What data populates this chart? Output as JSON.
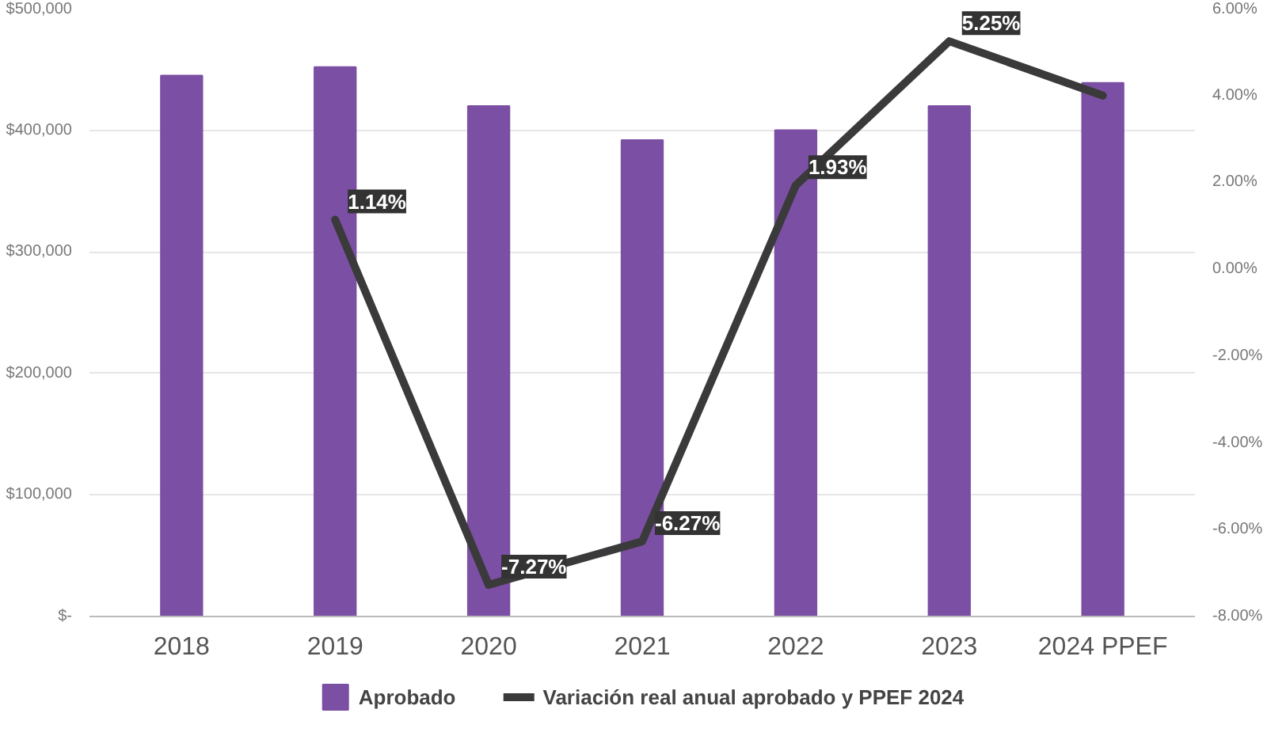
{
  "chart_data": {
    "type": "bar",
    "categories": [
      "2018",
      "2019",
      "2020",
      "2021",
      "2022",
      "2023",
      "2024 PPEF"
    ],
    "series": [
      {
        "name": "Aprobado",
        "color": "#7b4fa3",
        "values": [
          445000,
          452000,
          420000,
          392000,
          400000,
          420000,
          439000
        ]
      },
      {
        "name": "Variación real anual aprobado y PPEF 2024",
        "type": "line",
        "axis": "y2",
        "color": "#3a3a3a",
        "values": [
          null,
          1.14,
          -7.27,
          -6.27,
          1.93,
          5.25,
          4.0
        ],
        "value_labels": [
          null,
          "1.14%",
          "-7.27%",
          "-6.27%",
          "1.93%",
          "5.25%",
          null
        ]
      }
    ],
    "ylim": [
      0,
      500000
    ],
    "yticks": [
      {
        "value": 0,
        "label": "$-"
      },
      {
        "value": 100000,
        "label": "$100,000"
      },
      {
        "value": 200000,
        "label": "$200,000"
      },
      {
        "value": 300000,
        "label": "$300,000"
      },
      {
        "value": 400000,
        "label": "$400,000"
      },
      {
        "value": 500000,
        "label": "$500,000"
      }
    ],
    "y2lim": [
      -8,
      6
    ],
    "y2ticks": [
      {
        "value": -8,
        "label": "-8.00%"
      },
      {
        "value": -6,
        "label": "-6.00%"
      },
      {
        "value": -4,
        "label": "-4.00%"
      },
      {
        "value": -2,
        "label": "-2.00%"
      },
      {
        "value": 0,
        "label": "0.00%"
      },
      {
        "value": 2,
        "label": "2.00%"
      },
      {
        "value": 4,
        "label": "4.00%"
      },
      {
        "value": 6,
        "label": "6.00%"
      }
    ],
    "grid": "y",
    "legend": "bottom",
    "line_style": "solid",
    "marker": "none"
  }
}
